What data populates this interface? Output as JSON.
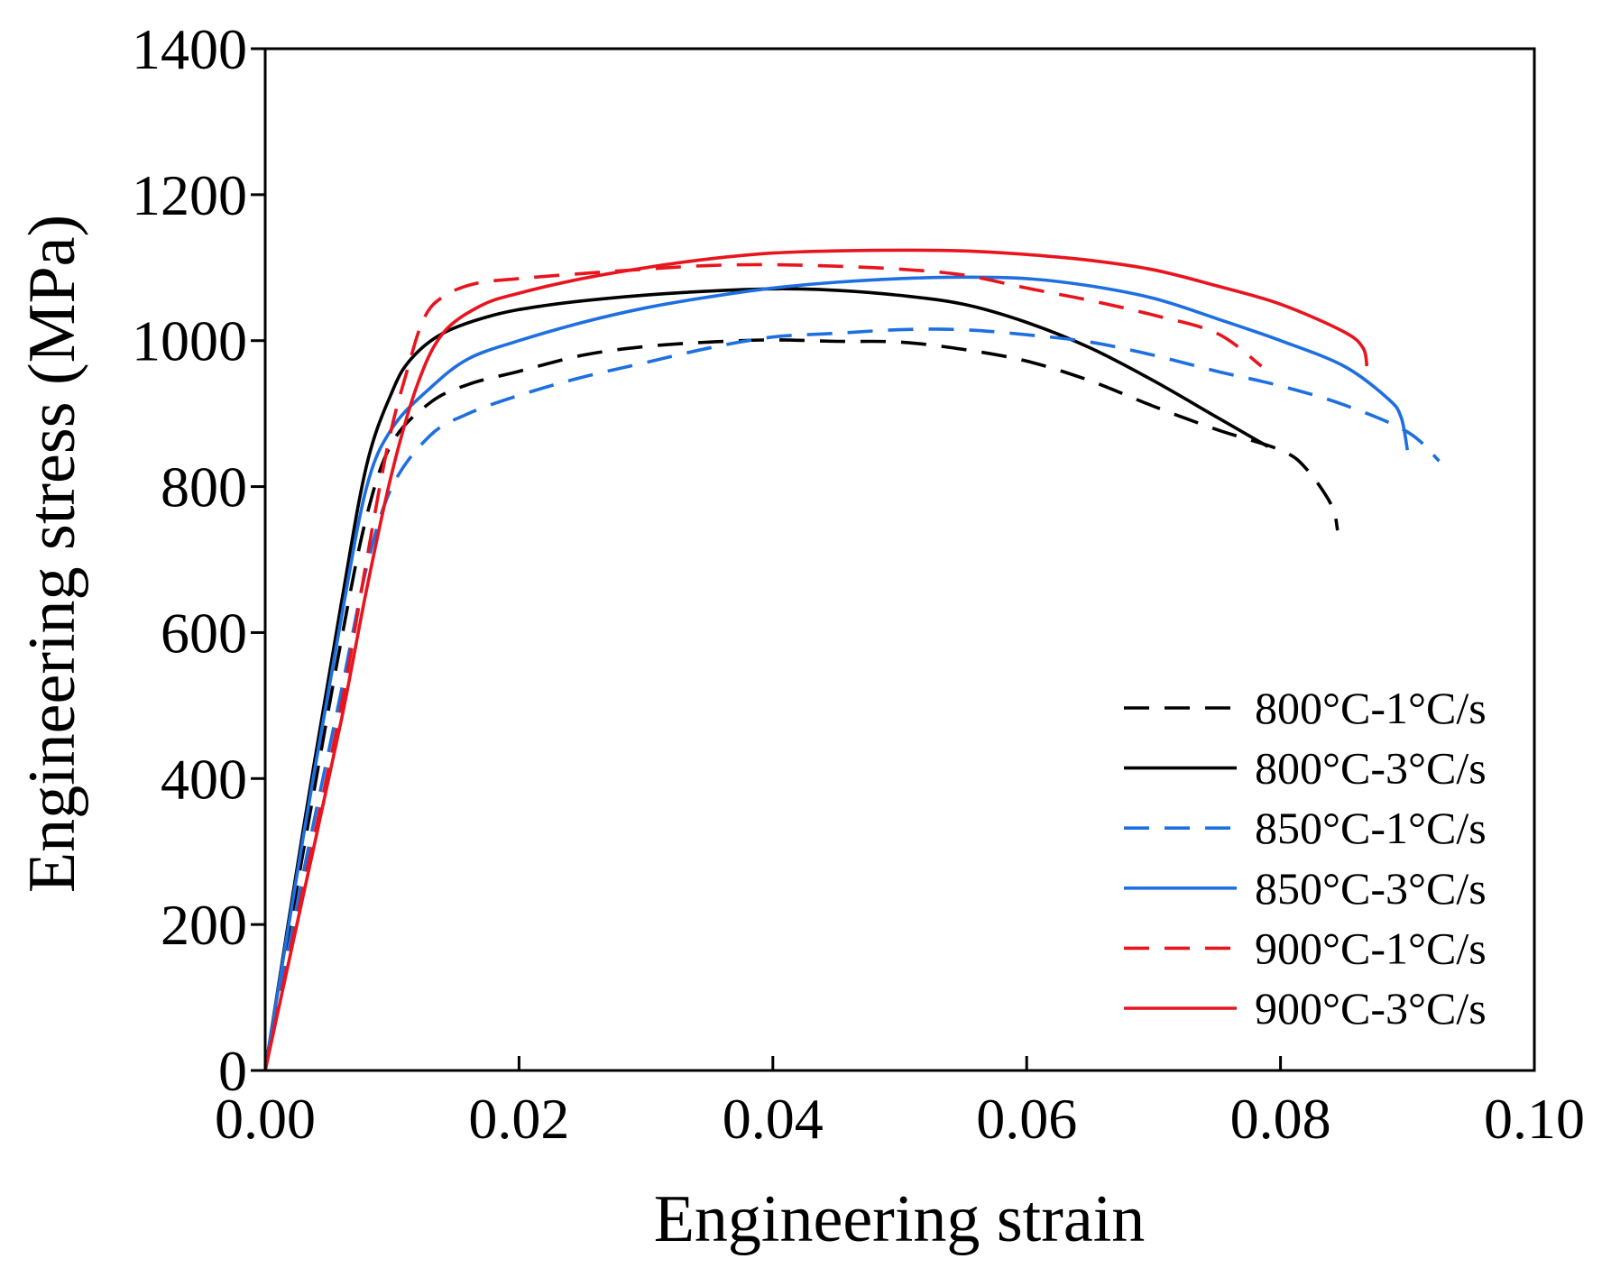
{
  "chart_data": {
    "type": "line",
    "title": "",
    "xlabel": "Engineering strain",
    "ylabel": "Engineering stress (MPa)",
    "xlim": [
      0,
      0.1
    ],
    "ylim": [
      0,
      1400
    ],
    "xtick_values": [
      0,
      0.02,
      0.04,
      0.06,
      0.08,
      0.1
    ],
    "xtick_labels": [
      "0.00",
      "0.02",
      "0.04",
      "0.06",
      "0.08",
      "0.10"
    ],
    "ytick_values": [
      0,
      200,
      400,
      600,
      800,
      1000,
      1200,
      1400
    ],
    "ytick_labels": [
      "0",
      "200",
      "400",
      "600",
      "800",
      "1000",
      "1200",
      "1400"
    ],
    "grid": false,
    "legend_position": "lower-right",
    "series": [
      {
        "name": "800°C-1°C/s",
        "color": "#000000",
        "dashed": true,
        "x": [
          0,
          0.003,
          0.006,
          0.008,
          0.01,
          0.013,
          0.016,
          0.02,
          0.025,
          0.03,
          0.035,
          0.04,
          0.045,
          0.05,
          0.055,
          0.06,
          0.065,
          0.07,
          0.075,
          0.08,
          0.082,
          0.084,
          0.0845
        ],
        "y": [
          0,
          300,
          590,
          760,
          860,
          915,
          940,
          958,
          980,
          992,
          998,
          1001,
          999,
          998,
          988,
          972,
          945,
          910,
          878,
          850,
          825,
          775,
          740
        ]
      },
      {
        "name": "800°C-3°C/s",
        "color": "#000000",
        "dashed": false,
        "x": [
          0,
          0.003,
          0.006,
          0.008,
          0.01,
          0.0115,
          0.014,
          0.018,
          0.022,
          0.027,
          0.033,
          0.04,
          0.045,
          0.05,
          0.055,
          0.06,
          0.065,
          0.07,
          0.075,
          0.079
        ],
        "y": [
          0,
          330,
          640,
          830,
          930,
          975,
          1010,
          1035,
          1048,
          1058,
          1066,
          1071,
          1069,
          1062,
          1050,
          1025,
          990,
          945,
          895,
          855
        ]
      },
      {
        "name": "850°C-1°C/s",
        "color": "#1e6fe0",
        "dashed": true,
        "x": [
          0,
          0.003,
          0.006,
          0.008,
          0.01,
          0.013,
          0.016,
          0.02,
          0.025,
          0.03,
          0.035,
          0.04,
          0.045,
          0.05,
          0.055,
          0.06,
          0.065,
          0.07,
          0.075,
          0.08,
          0.085,
          0.09,
          0.0925
        ],
        "y": [
          0,
          270,
          520,
          690,
          800,
          870,
          900,
          925,
          950,
          970,
          990,
          1005,
          1010,
          1015,
          1015,
          1008,
          998,
          980,
          958,
          938,
          912,
          875,
          835
        ]
      },
      {
        "name": "850°C-3°C/s",
        "color": "#1e6fe0",
        "dashed": false,
        "x": [
          0,
          0.003,
          0.006,
          0.008,
          0.01,
          0.013,
          0.016,
          0.02,
          0.025,
          0.03,
          0.035,
          0.04,
          0.045,
          0.05,
          0.055,
          0.06,
          0.065,
          0.07,
          0.075,
          0.08,
          0.085,
          0.0885,
          0.0895,
          0.09
        ],
        "y": [
          0,
          320,
          620,
          800,
          880,
          935,
          975,
          1000,
          1025,
          1045,
          1060,
          1072,
          1080,
          1085,
          1087,
          1085,
          1075,
          1058,
          1030,
          1000,
          965,
          920,
          895,
          850
        ]
      },
      {
        "name": "900°C-1°C/s",
        "color": "#e8141e",
        "dashed": true,
        "x": [
          0,
          0.003,
          0.006,
          0.008,
          0.0097,
          0.0112,
          0.0125,
          0.014,
          0.0165,
          0.02,
          0.025,
          0.03,
          0.035,
          0.04,
          0.045,
          0.05,
          0.055,
          0.06,
          0.065,
          0.07,
          0.075,
          0.0785
        ],
        "y": [
          0,
          250,
          500,
          700,
          860,
          960,
          1030,
          1060,
          1078,
          1085,
          1092,
          1098,
          1103,
          1104,
          1102,
          1098,
          1090,
          1072,
          1055,
          1035,
          1010,
          965
        ]
      },
      {
        "name": "900°C-3°C/s",
        "color": "#e8141e",
        "dashed": false,
        "x": [
          0,
          0.003,
          0.006,
          0.008,
          0.01,
          0.012,
          0.014,
          0.017,
          0.02,
          0.025,
          0.03,
          0.035,
          0.04,
          0.045,
          0.05,
          0.055,
          0.06,
          0.065,
          0.07,
          0.075,
          0.08,
          0.085,
          0.0865,
          0.0868
        ],
        "y": [
          0,
          240,
          480,
          660,
          820,
          940,
          1010,
          1048,
          1065,
          1085,
          1100,
          1112,
          1120,
          1123,
          1124,
          1123,
          1118,
          1110,
          1097,
          1075,
          1050,
          1012,
          990,
          965
        ]
      }
    ]
  }
}
